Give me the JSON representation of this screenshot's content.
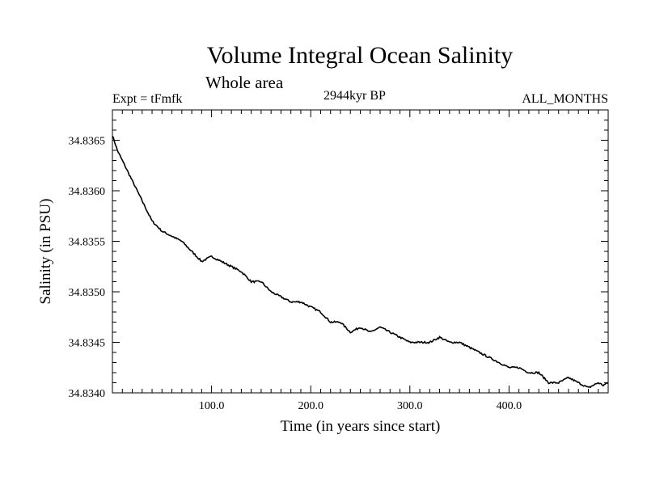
{
  "chart_data": {
    "type": "line",
    "title": "Volume Integral Ocean Salinity",
    "subtitle": "Whole area",
    "annotations": {
      "experiment": "Expt = tFmfk",
      "date": "2944kyr BP",
      "months": "ALL_MONTHS"
    },
    "xlabel": "Time (in years since start)",
    "ylabel": "Salinity (in PSU)",
    "xlim": [
      0,
      500
    ],
    "ylim": [
      34.834,
      34.8368
    ],
    "xticks": [
      100,
      200,
      300,
      400
    ],
    "xtick_labels": [
      "100.0",
      "200.0",
      "300.0",
      "400.0"
    ],
    "yticks": [
      34.834,
      34.8345,
      34.835,
      34.8355,
      34.836,
      34.8365
    ],
    "ytick_labels": [
      "34.8340",
      "34.8345",
      "34.8350",
      "34.8355",
      "34.8360",
      "34.8365"
    ],
    "grid": false,
    "series": [
      {
        "name": "Salinity",
        "x": [
          0,
          5,
          10,
          20,
          30,
          40,
          50,
          60,
          70,
          80,
          90,
          100,
          110,
          120,
          130,
          140,
          150,
          160,
          170,
          180,
          190,
          200,
          210,
          220,
          230,
          240,
          250,
          260,
          270,
          280,
          290,
          300,
          310,
          320,
          330,
          340,
          350,
          360,
          370,
          380,
          390,
          400,
          410,
          420,
          430,
          440,
          450,
          460,
          470,
          480,
          490,
          495,
          500
        ],
        "values": [
          34.83655,
          34.8364,
          34.8363,
          34.8361,
          34.8359,
          34.8357,
          34.8356,
          34.83555,
          34.8355,
          34.8354,
          34.8353,
          34.83535,
          34.8353,
          34.83525,
          34.8352,
          34.8351,
          34.8351,
          34.835,
          34.83495,
          34.8349,
          34.8349,
          34.83485,
          34.8348,
          34.8347,
          34.8347,
          34.8346,
          34.83465,
          34.8346,
          34.83465,
          34.8346,
          34.83455,
          34.8345,
          34.8345,
          34.8345,
          34.83455,
          34.8345,
          34.8345,
          34.83445,
          34.8344,
          34.83435,
          34.8343,
          34.83425,
          34.83425,
          34.8342,
          34.8342,
          34.8341,
          34.8341,
          34.83415,
          34.8341,
          34.83405,
          34.8341,
          34.834075,
          34.8341
        ]
      }
    ]
  }
}
